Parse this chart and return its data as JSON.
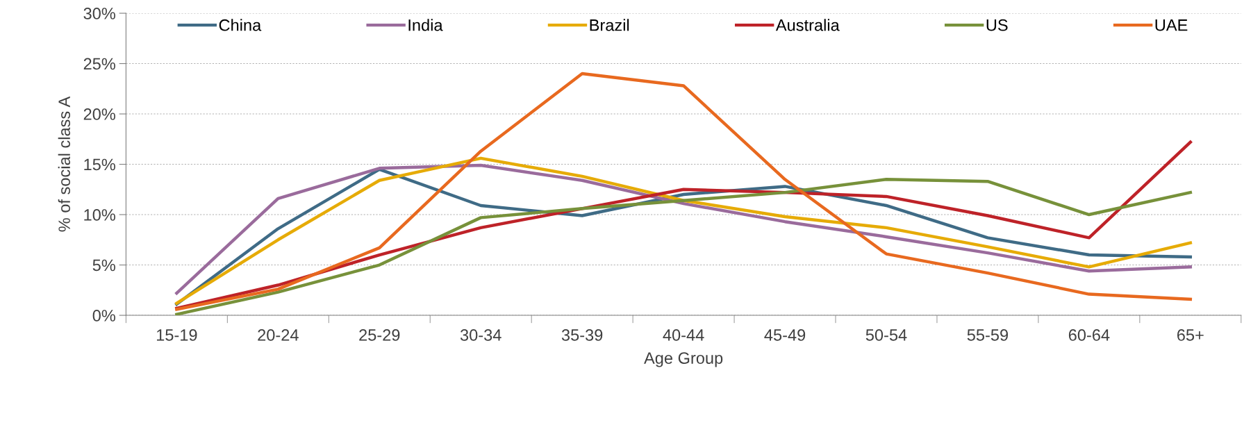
{
  "chart_data": {
    "type": "line",
    "xlabel": "Age Group",
    "ylabel": "% of social class A",
    "categories": [
      "15-19",
      "20-24",
      "25-29",
      "30-34",
      "35-39",
      "40-44",
      "45-49",
      "50-54",
      "55-59",
      "60-64",
      "65+"
    ],
    "series": [
      {
        "name": "China",
        "color": "#3f6b86",
        "values": [
          1.1,
          8.6,
          14.5,
          10.9,
          9.9,
          12.0,
          12.8,
          10.9,
          7.7,
          6.0,
          5.8
        ]
      },
      {
        "name": "India",
        "color": "#9a6b9c",
        "values": [
          2.2,
          11.6,
          14.6,
          14.9,
          13.4,
          11.1,
          9.3,
          7.8,
          6.2,
          4.4,
          4.8
        ]
      },
      {
        "name": "Brazil",
        "color": "#e6ab07",
        "values": [
          1.2,
          7.5,
          13.4,
          15.6,
          13.8,
          11.4,
          9.8,
          8.7,
          6.8,
          4.8,
          7.2
        ]
      },
      {
        "name": "Australia",
        "color": "#be2228",
        "values": [
          0.7,
          3.0,
          6.0,
          8.7,
          10.6,
          12.5,
          12.2,
          11.8,
          9.9,
          7.7,
          17.2
        ]
      },
      {
        "name": "US",
        "color": "#77913a",
        "values": [
          0.1,
          2.3,
          5.0,
          9.7,
          10.6,
          11.4,
          12.2,
          13.5,
          13.3,
          10.0,
          12.2
        ]
      },
      {
        "name": "UAE",
        "color": "#e8691f",
        "values": [
          0.6,
          2.6,
          6.7,
          16.3,
          24.0,
          22.8,
          13.5,
          6.1,
          4.2,
          2.1,
          1.6
        ]
      }
    ],
    "ylim": [
      0,
      30
    ],
    "yticks": [
      {
        "value": 0,
        "label": "0%"
      },
      {
        "value": 5,
        "label": "5%"
      },
      {
        "value": 10,
        "label": "10%"
      },
      {
        "value": 15,
        "label": "15%"
      },
      {
        "value": 20,
        "label": "20%"
      },
      {
        "value": 25,
        "label": "25%"
      },
      {
        "value": 30,
        "label": "30%"
      }
    ],
    "grid": "y",
    "legend": "top",
    "marker": "none",
    "line_style": "solid"
  }
}
